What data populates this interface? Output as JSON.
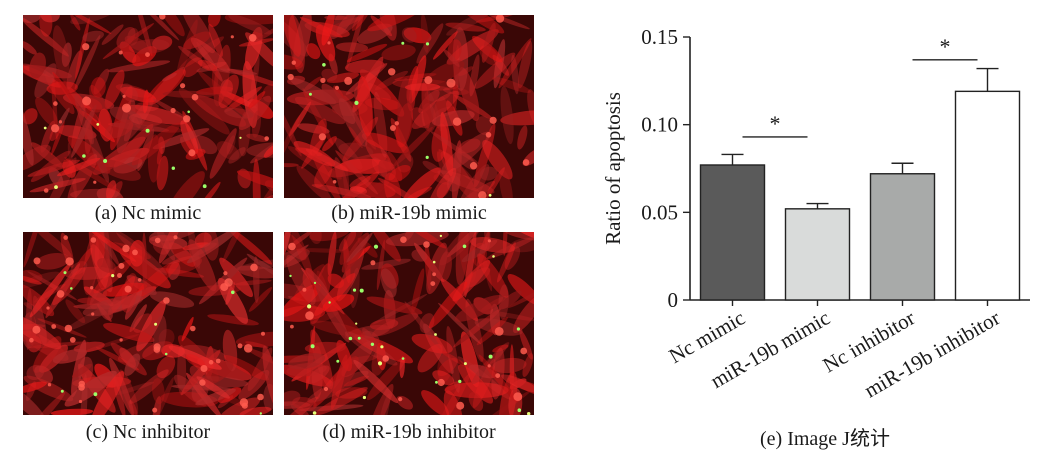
{
  "panels": [
    {
      "caption": "(a) Nc mimic",
      "green_cells": 10
    },
    {
      "caption": "(b) miR-19b mimic",
      "green_cells": 7
    },
    {
      "caption": "(c) Nc inhibitor",
      "green_cells": 9
    },
    {
      "caption": "(d) miR-19b inhibitor",
      "green_cells": 30
    }
  ],
  "chart_caption": "(e) Image J统计",
  "chart_data": {
    "type": "bar",
    "categories": [
      "Nc mimic",
      "miR-19b mimic",
      "Nc inhibitor",
      "miR-19b inhibitor"
    ],
    "values": [
      0.077,
      0.052,
      0.072,
      0.119
    ],
    "errors": [
      0.006,
      0.003,
      0.006,
      0.013
    ],
    "colors": [
      "#5a5a5a",
      "#d9dbda",
      "#a8aaa9",
      "#ffffff"
    ],
    "ylabel": "Ratio of apoptosis",
    "ylim": [
      0,
      0.15
    ],
    "yticks": [
      "0",
      "0.05",
      "0.10",
      "0.15"
    ],
    "ytick_values": [
      0,
      0.05,
      0.1,
      0.15
    ],
    "grid": false,
    "significance": [
      {
        "between": [
          0,
          1
        ],
        "label": "*",
        "y": 0.093
      },
      {
        "between": [
          2,
          3
        ],
        "label": "*",
        "y": 0.137
      }
    ]
  }
}
